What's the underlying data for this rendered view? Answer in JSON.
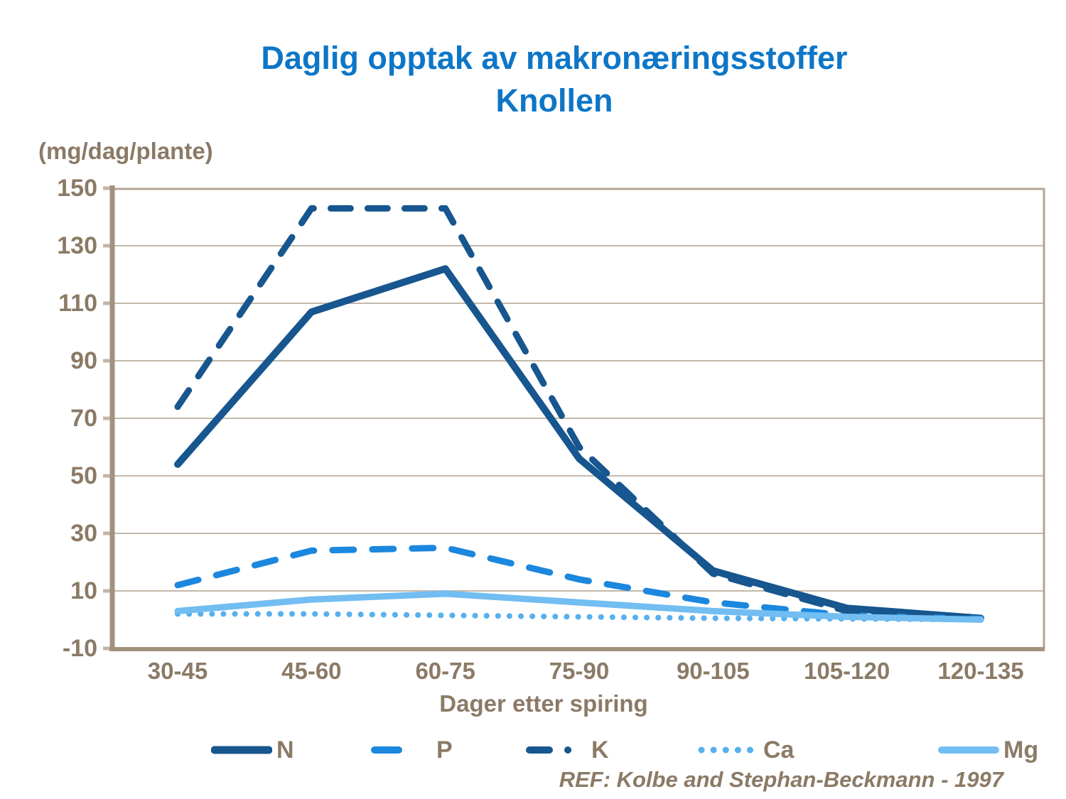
{
  "title": {
    "line1": "Daglig opptak av makronæringsstoffer",
    "line2": "Knollen"
  },
  "ref_text": "REF: Kolbe and Stephan-Beckmann - 1997",
  "colors": {
    "title_blue": "#0d76c7",
    "label_brown": "#8b7a66",
    "dark_blue": "#17568e",
    "mid_blue": "#1b87de",
    "light_blue_ca": "#58b0ec",
    "light_blue_mg": "#72bdf1",
    "gridline": "#c3b9aa",
    "frame": "#b2a593",
    "axis": "#a39180",
    "tick": "#c3b6a5"
  },
  "chart_data": {
    "type": "line",
    "title": "Daglig opptak av makronæringsstoffer Knollen",
    "xlabel": "Dager etter spiring",
    "ylabel": "(mg/dag/plante)",
    "ylim": [
      -10,
      150
    ],
    "yticks": [
      150,
      130,
      110,
      90,
      70,
      50,
      30,
      10,
      -10
    ],
    "grid": true,
    "legend_position": "bottom",
    "categories": [
      "30-45",
      "45-60",
      "60-75",
      "75-90",
      "90-105",
      "105-120",
      "120-135"
    ],
    "series": [
      {
        "name": "N",
        "style": "solid",
        "color": "#17568e",
        "width": 10,
        "values": [
          54,
          107,
          122,
          56,
          17,
          4,
          0.5
        ]
      },
      {
        "name": "P",
        "style": "dashed",
        "color": "#1b87de",
        "width": 9,
        "values": [
          12,
          24,
          25,
          14,
          6,
          1.5,
          0.3
        ]
      },
      {
        "name": "K",
        "style": "dashdot",
        "color": "#17568e",
        "width": 9,
        "values": [
          74,
          143,
          143,
          60,
          16,
          3,
          0.5
        ]
      },
      {
        "name": "Ca",
        "style": "dotted",
        "color": "#58b0ec",
        "width": 8,
        "values": [
          2,
          2,
          1.5,
          1,
          0.5,
          0.3,
          0
        ]
      },
      {
        "name": "Mg",
        "style": "solid",
        "color": "#72bdf1",
        "width": 9,
        "values": [
          3,
          7,
          9,
          6,
          3,
          1,
          0
        ]
      }
    ]
  }
}
